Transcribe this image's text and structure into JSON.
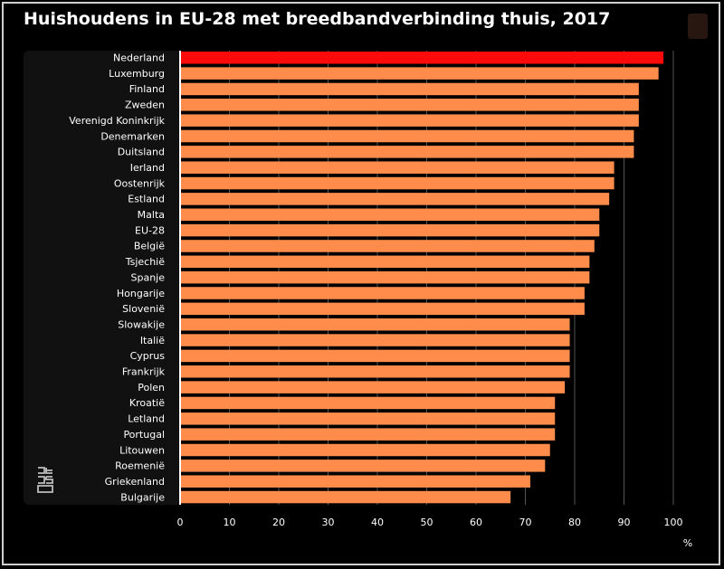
{
  "chart_data": {
    "type": "bar",
    "orientation": "horizontal",
    "title": "Huishoudens in EU-28 met breedbandverbinding thuis, 2017",
    "categories": [
      "Nederland",
      "Luxemburg",
      "Finland",
      "Zweden",
      "Verenigd Koninkrijk",
      "Denemarken",
      "Duitsland",
      "Ierland",
      "Oostenrijk",
      "Estland",
      "Malta",
      "EU-28",
      "België",
      "Tsjechië",
      "Spanje",
      "Hongarije",
      "Slovenië",
      "Slowakije",
      "Italië",
      "Cyprus",
      "Frankrijk",
      "Polen",
      "Kroatië",
      "Letland",
      "Portugal",
      "Litouwen",
      "Roemenië",
      "Griekenland",
      "Bulgarije"
    ],
    "values": [
      98,
      97,
      93,
      93,
      93,
      92,
      92,
      88,
      88,
      87,
      85,
      85,
      84,
      83,
      83,
      82,
      82,
      79,
      79,
      79,
      79,
      78,
      76,
      76,
      76,
      75,
      74,
      71,
      67
    ],
    "highlight": "Nederland",
    "xlim": [
      0,
      100
    ],
    "xticks": [
      "0",
      "10",
      "20",
      "30",
      "40",
      "50",
      "60",
      "70",
      "80",
      "90",
      "100"
    ],
    "xunit": "%",
    "colors": {
      "bar": "#ff8c4a",
      "highlight": "#ff0a0a",
      "grid": "#555555",
      "axis": "#ffffff"
    },
    "grid": true
  },
  "logo": {
    "icon": "cbs-logo-icon"
  }
}
